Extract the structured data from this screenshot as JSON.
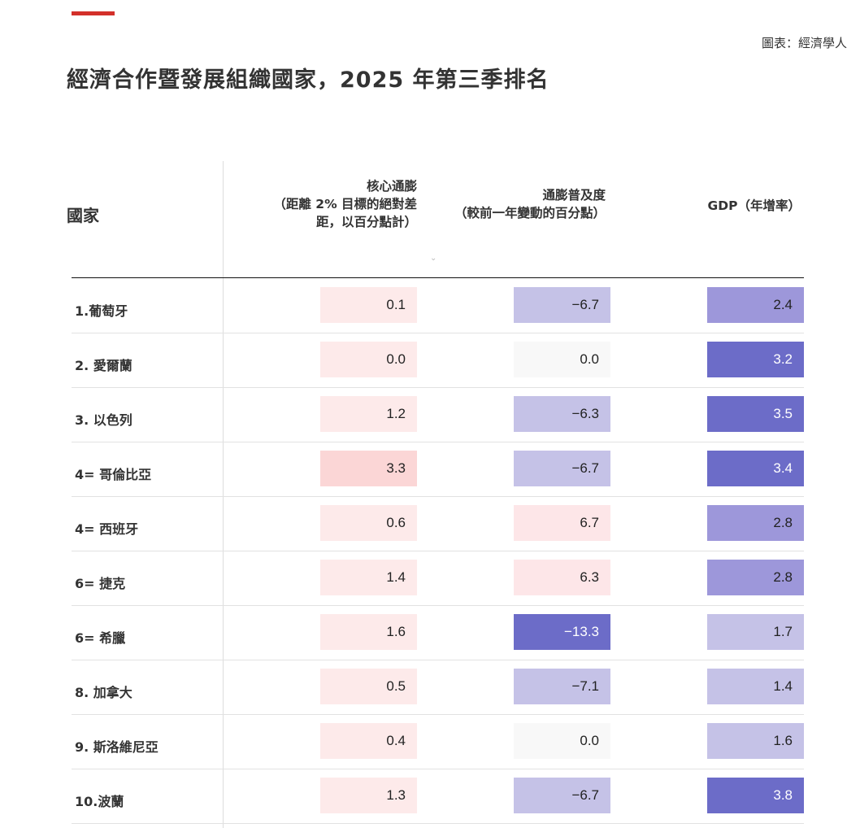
{
  "source": "圖表：經濟學人",
  "title": "經濟合作暨發展組織國家，2025 年第三季排名",
  "headers": {
    "country": "國家",
    "core_inflation": [
      "核心通膨",
      "（距離 2% 目標的絕對差",
      "距，以百分點計）"
    ],
    "inflation_breadth": [
      "通膨普及度",
      "（較前一年變動的百分點）"
    ],
    "gdp": "GDP（年增率）"
  },
  "sort_icon": "chevron-down-icon",
  "rows": [
    {
      "name": "1.葡萄牙",
      "core": "0.1",
      "core_color": "#fdeaea",
      "breadth": "−6.7",
      "breadth_color": "#c5c2e7",
      "gdp": "2.4",
      "gdp_color": "#9d97da"
    },
    {
      "name": "2. 愛爾蘭",
      "core": "0.0",
      "core_color": "#fdeaea",
      "breadth": "0.0",
      "breadth_color": "#f8f8f8",
      "gdp": "3.2",
      "gdp_color": "#6c6cc8"
    },
    {
      "name": "3. 以色列",
      "core": "1.2",
      "core_color": "#fdeaea",
      "breadth": "−6.3",
      "breadth_color": "#c5c2e7",
      "gdp": "3.5",
      "gdp_color": "#6c6cc8"
    },
    {
      "name": "4= 哥倫比亞",
      "core": "3.3",
      "core_color": "#fbd6d6",
      "breadth": "−6.7",
      "breadth_color": "#c5c2e7",
      "gdp": "3.4",
      "gdp_color": "#6c6cc8"
    },
    {
      "name": "4= 西班牙",
      "core": "0.6",
      "core_color": "#fdeaea",
      "breadth": "6.7",
      "breadth_color": "#fde6e8",
      "gdp": "2.8",
      "gdp_color": "#9d97da"
    },
    {
      "name": "6= 捷克",
      "core": "1.4",
      "core_color": "#fdeaea",
      "breadth": "6.3",
      "breadth_color": "#fde6e8",
      "gdp": "2.8",
      "gdp_color": "#9d97da"
    },
    {
      "name": "6= 希臘",
      "core": "1.6",
      "core_color": "#fdeaea",
      "breadth": "−13.3",
      "breadth_color": "#6c6cc8",
      "gdp": "1.7",
      "gdp_color": "#c5c2e7"
    },
    {
      "name": "8. 加拿大",
      "core": "0.5",
      "core_color": "#fdeaea",
      "breadth": "−7.1",
      "breadth_color": "#c5c2e7",
      "gdp": "1.4",
      "gdp_color": "#c5c2e7"
    },
    {
      "name": "9. 斯洛維尼亞",
      "core": "0.4",
      "core_color": "#fdeaea",
      "breadth": "0.0",
      "breadth_color": "#f8f8f8",
      "gdp": "1.6",
      "gdp_color": "#c5c2e7"
    },
    {
      "name": "10.波蘭",
      "core": "1.3",
      "core_color": "#fdeaea",
      "breadth": "−6.7",
      "breadth_color": "#c5c2e7",
      "gdp": "3.8",
      "gdp_color": "#6c6cc8"
    }
  ]
}
